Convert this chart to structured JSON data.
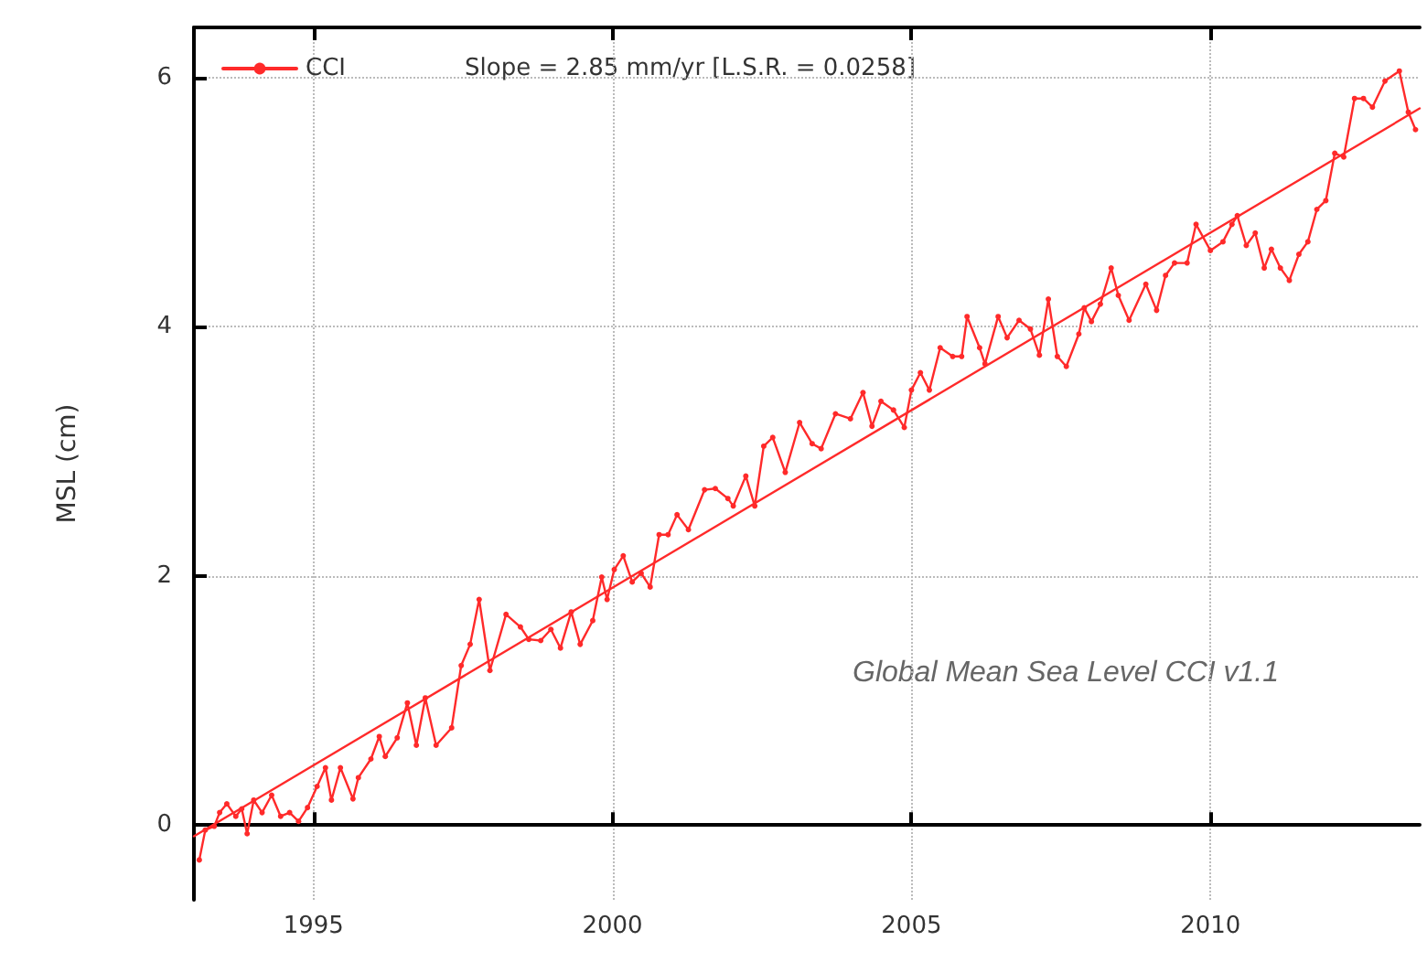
{
  "chart_data": {
    "type": "line",
    "ylabel": "MSL (cm)",
    "xlim": [
      1993.0,
      2013.5
    ],
    "xticks": [
      1995,
      2000,
      2005,
      2010
    ],
    "ylim": [
      -0.6,
      6.4
    ],
    "yticks": [
      0,
      2,
      4,
      6
    ],
    "grid": true,
    "legend": "top left",
    "marker": "circle",
    "line_style": "solid",
    "annotations": [
      "Slope = 2.85 mm/yr [L.S.R. = 0.0258]",
      "Global Mean Sea Level CCI v1.1"
    ],
    "series": [
      {
        "name": "CCI",
        "color": "#ff2a2a",
        "x": [
          1993.09,
          1993.19,
          1993.34,
          1993.43,
          1993.55,
          1993.7,
          1993.8,
          1993.89,
          1994.0,
          1994.14,
          1994.3,
          1994.45,
          1994.6,
          1994.75,
          1994.9,
          1995.06,
          1995.2,
          1995.3,
          1995.45,
          1995.66,
          1995.75,
          1995.96,
          1996.1,
          1996.2,
          1996.4,
          1996.57,
          1996.72,
          1996.87,
          1997.05,
          1997.31,
          1997.47,
          1997.62,
          1997.77,
          1997.95,
          1998.22,
          1998.46,
          1998.6,
          1998.8,
          1998.97,
          1999.13,
          1999.31,
          1999.46,
          1999.67,
          1999.82,
          1999.91,
          2000.03,
          2000.18,
          2000.33,
          2000.48,
          2000.63,
          2000.78,
          2000.93,
          2001.08,
          2001.27,
          2001.54,
          2001.72,
          2001.93,
          2002.02,
          2002.23,
          2002.38,
          2002.53,
          2002.68,
          2002.89,
          2003.13,
          2003.34,
          2003.49,
          2003.73,
          2003.98,
          2004.19,
          2004.34,
          2004.49,
          2004.7,
          2004.88,
          2005.0,
          2005.15,
          2005.3,
          2005.48,
          2005.69,
          2005.84,
          2005.93,
          2006.14,
          2006.23,
          2006.45,
          2006.6,
          2006.8,
          2006.99,
          2007.14,
          2007.29,
          2007.44,
          2007.59,
          2007.8,
          2007.89,
          2008.01,
          2008.16,
          2008.34,
          2008.46,
          2008.64,
          2008.92,
          2009.1,
          2009.25,
          2009.4,
          2009.61,
          2009.76,
          2010.0,
          2010.21,
          2010.36,
          2010.45,
          2010.6,
          2010.75,
          2010.9,
          2011.02,
          2011.17,
          2011.32,
          2011.48,
          2011.63,
          2011.78,
          2011.93,
          2012.08,
          2012.23,
          2012.41,
          2012.56,
          2012.71,
          2012.92,
          2013.16,
          2013.31,
          2013.43
        ],
        "values": [
          -0.28,
          -0.04,
          -0.01,
          0.1,
          0.17,
          0.07,
          0.13,
          -0.07,
          0.2,
          0.1,
          0.24,
          0.07,
          0.1,
          0.03,
          0.14,
          0.31,
          0.46,
          0.2,
          0.46,
          0.21,
          0.38,
          0.53,
          0.71,
          0.55,
          0.7,
          0.98,
          0.64,
          1.02,
          0.64,
          0.78,
          1.28,
          1.45,
          1.81,
          1.24,
          1.69,
          1.59,
          1.49,
          1.48,
          1.57,
          1.42,
          1.71,
          1.45,
          1.64,
          1.99,
          1.81,
          2.05,
          2.16,
          1.95,
          2.02,
          1.91,
          2.33,
          2.33,
          2.49,
          2.37,
          2.69,
          2.7,
          2.62,
          2.56,
          2.8,
          2.56,
          3.04,
          3.11,
          2.83,
          3.23,
          3.06,
          3.02,
          3.3,
          3.26,
          3.47,
          3.2,
          3.4,
          3.33,
          3.19,
          3.49,
          3.63,
          3.49,
          3.83,
          3.76,
          3.76,
          4.08,
          3.83,
          3.7,
          4.08,
          3.91,
          4.05,
          3.98,
          3.77,
          4.22,
          3.76,
          3.68,
          3.94,
          4.15,
          4.04,
          4.18,
          4.47,
          4.25,
          4.05,
          4.34,
          4.13,
          4.41,
          4.51,
          4.51,
          4.82,
          4.61,
          4.68,
          4.82,
          4.89,
          4.65,
          4.75,
          4.47,
          4.62,
          4.47,
          4.37,
          4.58,
          4.68,
          4.94,
          5.01,
          5.39,
          5.36,
          5.83,
          5.83,
          5.76,
          5.97,
          6.05,
          5.72,
          5.58
        ]
      },
      {
        "type": "line",
        "color": "#ff2a2a",
        "marker": "none",
        "x": [
          1993.0,
          2013.5
        ],
        "values": [
          -0.09,
          5.75
        ]
      }
    ]
  }
}
